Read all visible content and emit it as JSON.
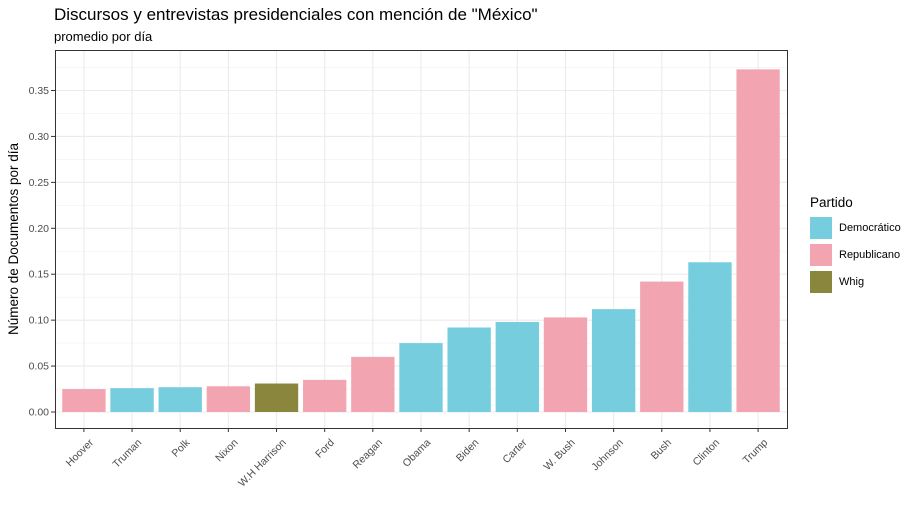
{
  "chart_data": {
    "type": "bar",
    "title": "Discursos y entrevistas presidenciales con mención de \"México\"",
    "subtitle": "promedio por día",
    "xlabel": "",
    "ylabel": "Número de Documentos por día",
    "ylim": [
      0,
      0.39
    ],
    "yticks": [
      0.0,
      0.05,
      0.1,
      0.15,
      0.2,
      0.25,
      0.3,
      0.35
    ],
    "ytick_labels": [
      "0.00",
      "0.05",
      "0.10",
      "0.15",
      "0.20",
      "0.25",
      "0.30",
      "0.35"
    ],
    "categories": [
      "Hoover",
      "Truman",
      "Polk",
      "Nixon",
      "W.H Harrison",
      "Ford",
      "Reagan",
      "Obama",
      "Biden",
      "Carter",
      "W. Bush",
      "Johnson",
      "Bush",
      "Clinton",
      "Trump"
    ],
    "values": [
      0.025,
      0.026,
      0.027,
      0.028,
      0.031,
      0.035,
      0.06,
      0.075,
      0.092,
      0.098,
      0.103,
      0.112,
      0.142,
      0.163,
      0.373
    ],
    "party": [
      "Republicano",
      "Democrático",
      "Democrático",
      "Republicano",
      "Whig",
      "Republicano",
      "Republicano",
      "Democrático",
      "Democrático",
      "Democrático",
      "Republicano",
      "Democrático",
      "Republicano",
      "Democrático",
      "Republicano"
    ],
    "legend": {
      "title": "Partido",
      "position": "right",
      "entries": [
        {
          "name": "Democrático",
          "color": "#76CDDE"
        },
        {
          "name": "Republicano",
          "color": "#F2A5B1"
        },
        {
          "name": "Whig",
          "color": "#8B863D"
        }
      ]
    },
    "grid": true
  }
}
